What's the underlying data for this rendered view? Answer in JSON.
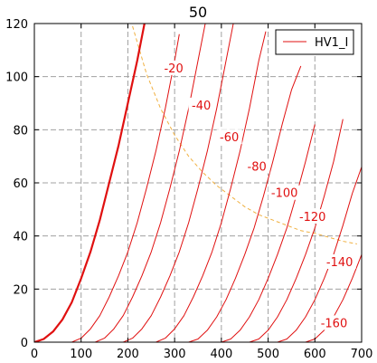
{
  "chart_data": {
    "type": "line",
    "title": "50",
    "xlabel": "",
    "ylabel": "",
    "xlim": [
      0,
      700
    ],
    "ylim": [
      0,
      120
    ],
    "xticks": [
      0,
      100,
      200,
      300,
      400,
      500,
      600,
      700
    ],
    "yticks": [
      0,
      20,
      40,
      60,
      80,
      100,
      120
    ],
    "grid": true,
    "legend": {
      "position": "top-right",
      "entries": [
        "HV1_I"
      ]
    },
    "colors": {
      "series": "#e01010",
      "load_line": "#f0b040",
      "grid": "#a0a0a0"
    },
    "series": [
      {
        "grid_voltage": "0",
        "bold": true,
        "x": [
          0,
          20,
          40,
          60,
          80,
          100,
          120,
          140,
          160,
          180,
          200,
          220,
          240
        ],
        "y": [
          0,
          1.2,
          4,
          8.5,
          15,
          24,
          34,
          46,
          60,
          74,
          90,
          106,
          124
        ]
      },
      {
        "grid_voltage": "-20",
        "bold": false,
        "x": [
          80,
          100,
          120,
          140,
          160,
          180,
          200,
          220,
          240,
          260,
          280,
          300,
          310
        ],
        "y": [
          0,
          1.5,
          5,
          10,
          17,
          25,
          34,
          45,
          58,
          72,
          88,
          106,
          116
        ]
      },
      {
        "grid_voltage": "-40",
        "bold": false,
        "x": [
          130,
          150,
          170,
          190,
          210,
          230,
          250,
          270,
          290,
          310,
          330,
          350,
          370
        ],
        "y": [
          0,
          1.5,
          5,
          10,
          17,
          25,
          34,
          45,
          58,
          72,
          88,
          106,
          124
        ]
      },
      {
        "grid_voltage": "-60",
        "bold": false,
        "x": [
          190,
          210,
          230,
          250,
          270,
          290,
          310,
          330,
          350,
          370,
          390,
          410,
          430
        ],
        "y": [
          0,
          1.5,
          5,
          10,
          17,
          25,
          34,
          45,
          58,
          72,
          88,
          106,
          124
        ]
      },
      {
        "grid_voltage": "-80",
        "bold": false,
        "x": [
          260,
          280,
          300,
          320,
          340,
          360,
          380,
          400,
          420,
          440,
          460,
          480,
          495
        ],
        "y": [
          0,
          1.5,
          5,
          10,
          17,
          25,
          34,
          45,
          58,
          72,
          88,
          106,
          117
        ]
      },
      {
        "grid_voltage": "-100",
        "bold": false,
        "x": [
          330,
          350,
          370,
          390,
          410,
          430,
          450,
          470,
          490,
          510,
          530,
          550,
          570
        ],
        "y": [
          0,
          1.2,
          4.5,
          9.5,
          16,
          24,
          33,
          43,
          55,
          68,
          82,
          95,
          104
        ]
      },
      {
        "grid_voltage": "-120",
        "bold": false,
        "x": [
          400,
          420,
          440,
          460,
          480,
          500,
          520,
          540,
          560,
          580,
          600
        ],
        "y": [
          0,
          1.2,
          4.5,
          9.5,
          16,
          24,
          33,
          43,
          55,
          68,
          82
        ]
      },
      {
        "grid_voltage": "-140",
        "bold": false,
        "x": [
          460,
          480,
          500,
          520,
          540,
          560,
          580,
          600,
          620,
          640,
          660
        ],
        "y": [
          0,
          1.2,
          4.5,
          9.5,
          16,
          24,
          33,
          43,
          55,
          68,
          84
        ]
      },
      {
        "grid_voltage": "-160",
        "bold": false,
        "x": [
          520,
          540,
          560,
          580,
          600,
          620,
          640,
          660,
          680,
          700
        ],
        "y": [
          0,
          1.2,
          4.5,
          9.5,
          16,
          24,
          33,
          44,
          56,
          66
        ]
      },
      {
        "grid_voltage": "-180",
        "bold": false,
        "x": [
          580,
          600,
          620,
          640,
          660,
          680,
          700
        ],
        "y": [
          0,
          1.2,
          4.5,
          9.5,
          16,
          24,
          33
        ]
      }
    ],
    "load_line": {
      "x": [
        210,
        240,
        270,
        300,
        330,
        360,
        390,
        420,
        450,
        480,
        510,
        540,
        570,
        600,
        630,
        660,
        690
      ],
      "y": [
        119,
        101,
        88,
        78,
        70,
        64,
        59,
        55,
        51,
        48,
        46,
        44,
        42,
        41,
        39.5,
        38,
        37
      ]
    },
    "annotations": [
      {
        "text": "-20",
        "x": 298,
        "y": 103
      },
      {
        "text": "-40",
        "x": 357,
        "y": 89
      },
      {
        "text": "-60",
        "x": 417,
        "y": 77
      },
      {
        "text": "-80",
        "x": 476,
        "y": 66
      },
      {
        "text": "-100",
        "x": 535,
        "y": 56
      },
      {
        "text": "-120",
        "x": 595,
        "y": 47
      },
      {
        "text": "-140",
        "x": 653,
        "y": 30
      },
      {
        "text": "-160",
        "x": 641,
        "y": 7
      }
    ]
  }
}
